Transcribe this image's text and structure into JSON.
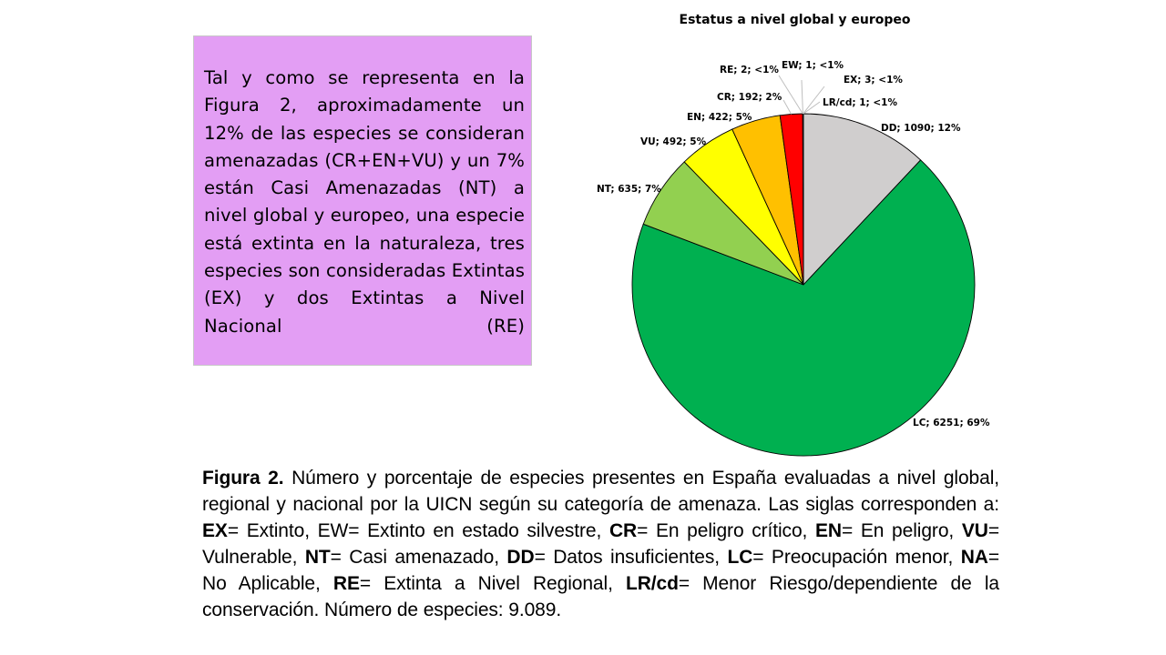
{
  "textbox": {
    "text": "Tal y como se representa en la Figura 2, aproximadamente un 12% de las especies se consideran amenazadas (CR+EN+VU) y un 7% están Casi Amenazadas (NT) a nivel global y europeo, una especie está extinta en la naturaleza, tres especies son consideradas Extintas (EX) y dos Extintas a Nivel Nacional (RE)",
    "background": "#e39ef4"
  },
  "chart_data": {
    "type": "pie",
    "title": "Estatus a nivel global y europeo",
    "start_angle": "12 o'clock, clockwise",
    "total": 9089,
    "slices": [
      {
        "label": "DD",
        "value": 1090,
        "percent": "12%",
        "text": "DD; 1090; 12%",
        "color": "#d0cece"
      },
      {
        "label": "LC",
        "value": 6251,
        "percent": "69%",
        "text": "LC; 6251; 69%",
        "color": "#00b050"
      },
      {
        "label": "NT",
        "value": 635,
        "percent": "7%",
        "text": "NT; 635; 7%",
        "color": "#92d050"
      },
      {
        "label": "VU",
        "value": 492,
        "percent": "5%",
        "text": "VU; 492; 5%",
        "color": "#ffff00"
      },
      {
        "label": "EN",
        "value": 422,
        "percent": "5%",
        "text": "EN; 422; 5%",
        "color": "#ffc000"
      },
      {
        "label": "CR",
        "value": 192,
        "percent": "2%",
        "text": "CR; 192; 2%",
        "color": "#ff0000"
      },
      {
        "label": "RE",
        "value": 2,
        "percent": "<1%",
        "text": "RE; 2; <1%",
        "color": "#7f7f7f"
      },
      {
        "label": "EW",
        "value": 1,
        "percent": "<1%",
        "text": "EW; 1; <1%",
        "color": "#404040"
      },
      {
        "label": "EX",
        "value": 3,
        "percent": "<1%",
        "text": "EX; 3; <1%",
        "color": "#000000"
      },
      {
        "label": "LR/cd",
        "value": 1,
        "percent": "<1%",
        "text": "LR/cd; 1; <1%",
        "color": "#a5a5a5"
      }
    ],
    "legend": "none (data labels with leader lines)"
  },
  "caption": {
    "lead": "Figura 2.",
    "parts": [
      {
        "t": " Número y porcentaje de especies presentes en España evaluadas a nivel global, regional y nacional por la UICN según su categoría de amenaza. Las siglas corresponden a: ",
        "b": false
      },
      {
        "t": "EX",
        "b": true
      },
      {
        "t": "= Extinto, EW= Extinto en estado silvestre, ",
        "b": false
      },
      {
        "t": "CR",
        "b": true
      },
      {
        "t": "= En peligro crítico, ",
        "b": false
      },
      {
        "t": "EN",
        "b": true
      },
      {
        "t": "= En peligro, ",
        "b": false
      },
      {
        "t": "VU",
        "b": true
      },
      {
        "t": "= Vulnerable, ",
        "b": false
      },
      {
        "t": "NT",
        "b": true
      },
      {
        "t": "= Casi amenazado, ",
        "b": false
      },
      {
        "t": "DD",
        "b": true
      },
      {
        "t": "= Datos insuficientes, ",
        "b": false
      },
      {
        "t": "LC",
        "b": true
      },
      {
        "t": "= Preocupación menor, ",
        "b": false
      },
      {
        "t": "NA",
        "b": true
      },
      {
        "t": "= No Aplicable, ",
        "b": false
      },
      {
        "t": "RE",
        "b": true
      },
      {
        "t": "= Extinta a Nivel Regional, ",
        "b": false
      },
      {
        "t": "LR/cd",
        "b": true
      },
      {
        "t": "= Menor Riesgo/dependiente de la conservación. Número de especies: 9.089.",
        "b": false
      }
    ]
  }
}
